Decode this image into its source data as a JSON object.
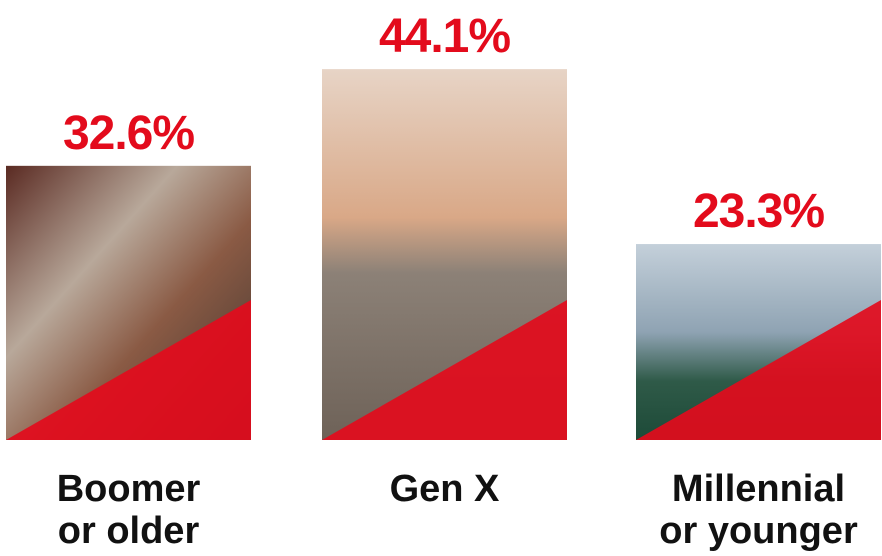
{
  "chart_data": {
    "type": "bar",
    "categories": [
      "Boomer\nor older",
      "Gen X",
      "Millennial\nor younger"
    ],
    "values": [
      32.6,
      44.1,
      23.3
    ],
    "value_labels": [
      "32.6%",
      "44.1%",
      "23.3%"
    ],
    "color": "#e30b1c"
  }
}
